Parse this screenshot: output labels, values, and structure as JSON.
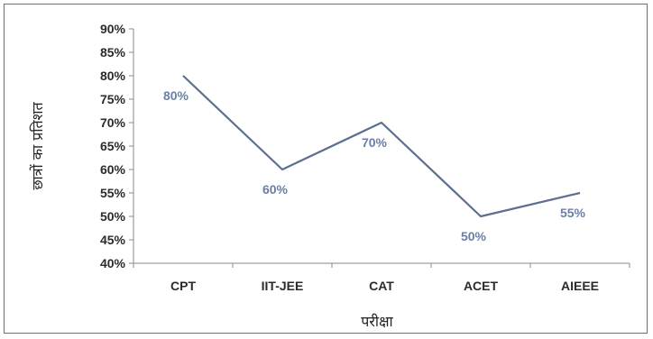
{
  "chart_data": {
    "type": "line",
    "categories": [
      "CPT",
      "IIT-JEE",
      "CAT",
      "ACET",
      "AIEEE"
    ],
    "values": [
      80,
      60,
      70,
      50,
      55
    ],
    "data_labels": [
      "80%",
      "60%",
      "70%",
      "50%",
      "55%"
    ],
    "title": "",
    "xlabel": "परीक्षा",
    "ylabel": "छात्रों का प्रतिशत",
    "ylim": [
      40,
      90
    ],
    "ytick_values": [
      40,
      45,
      50,
      55,
      60,
      65,
      70,
      75,
      80,
      85,
      90
    ],
    "ytick_labels": [
      "40%",
      "45%",
      "50%",
      "55%",
      "60%",
      "65%",
      "70%",
      "75%",
      "80%",
      "85%",
      "90%"
    ],
    "grid": false,
    "legend": "none",
    "line_color": "#5c6f8f",
    "label_color": "#6a7fa3"
  }
}
